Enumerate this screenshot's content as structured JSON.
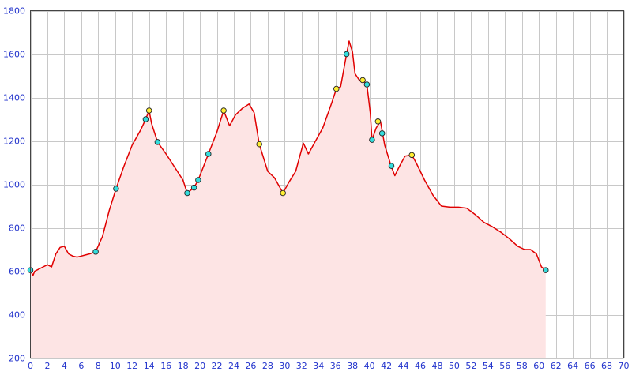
{
  "chart_data": {
    "type": "area",
    "title": "",
    "xlabel": "",
    "ylabel": "",
    "xlim": [
      0,
      70
    ],
    "ylim": [
      200,
      1800
    ],
    "grid": true,
    "x_ticks": [
      0,
      2,
      4,
      6,
      8,
      10,
      12,
      14,
      16,
      18,
      20,
      22,
      24,
      26,
      28,
      30,
      32,
      34,
      36,
      38,
      40,
      42,
      44,
      46,
      48,
      50,
      52,
      54,
      56,
      58,
      60,
      62,
      64,
      66,
      68,
      70
    ],
    "y_ticks": [
      200,
      400,
      600,
      800,
      1000,
      1200,
      1400,
      1600,
      1800
    ],
    "colors": {
      "line": "#e00000",
      "fill": "#fde4e4",
      "grid": "#c8c8c8",
      "tick_label": "#2233cc",
      "marker_cyan": "#33dddd",
      "marker_yellow": "#ffee33"
    },
    "series": [
      {
        "x": [
          0,
          0.3,
          0.5,
          1,
          1.5,
          2,
          2.5,
          3,
          3.5,
          4,
          4.5,
          5,
          5.5,
          6,
          6.5,
          7,
          7.7,
          8.5,
          9.3,
          10.1,
          11,
          12,
          13,
          13.6,
          14,
          14.3,
          15,
          16,
          17,
          18,
          18.5,
          19.3,
          19.8,
          21,
          22,
          22.8,
          23.5,
          24.2,
          25,
          25.8,
          26.4,
          27,
          28,
          28.8,
          29.8,
          30.5,
          31.3,
          32.2,
          32.8,
          33.5,
          34.5,
          35.5,
          36.1,
          36.6,
          37.3,
          37.6,
          38,
          38.3,
          38.8,
          39.2,
          39.7,
          40.1,
          40.3,
          40.8,
          41.3,
          41.8,
          42.6,
          43,
          43.5,
          44.2,
          45,
          45.5,
          46.5,
          47.5,
          48.5,
          49.5,
          50.5,
          51.5,
          52.5,
          53.5,
          54.5,
          55.5,
          56.5,
          57.5,
          58.3,
          59,
          59.7,
          60.3,
          60.8
        ],
        "y": [
          605,
          580,
          600,
          610,
          620,
          630,
          620,
          680,
          710,
          715,
          680,
          670,
          665,
          670,
          675,
          680,
          690,
          760,
          880,
          980,
          1080,
          1180,
          1250,
          1300,
          1340,
          1280,
          1195,
          1140,
          1080,
          1020,
          960,
          985,
          1020,
          1140,
          1240,
          1340,
          1270,
          1320,
          1350,
          1370,
          1330,
          1185,
          1060,
          1030,
          960,
          1010,
          1060,
          1190,
          1140,
          1190,
          1260,
          1370,
          1440,
          1450,
          1600,
          1660,
          1610,
          1510,
          1480,
          1480,
          1460,
          1330,
          1205,
          1260,
          1290,
          1180,
          1080,
          1040,
          1080,
          1130,
          1135,
          1100,
          1020,
          950,
          900,
          895,
          895,
          890,
          860,
          825,
          805,
          780,
          750,
          715,
          700,
          700,
          680,
          620,
          605
        ]
      }
    ],
    "markers": [
      {
        "x": 0,
        "y": 605,
        "color": "cyan"
      },
      {
        "x": 7.7,
        "y": 690,
        "color": "cyan"
      },
      {
        "x": 10.1,
        "y": 980,
        "color": "cyan"
      },
      {
        "x": 13.6,
        "y": 1300,
        "color": "cyan"
      },
      {
        "x": 14.0,
        "y": 1340,
        "color": "yellow"
      },
      {
        "x": 15.0,
        "y": 1195,
        "color": "cyan"
      },
      {
        "x": 18.5,
        "y": 960,
        "color": "cyan"
      },
      {
        "x": 19.3,
        "y": 985,
        "color": "cyan"
      },
      {
        "x": 19.8,
        "y": 1020,
        "color": "cyan"
      },
      {
        "x": 21.0,
        "y": 1140,
        "color": "cyan"
      },
      {
        "x": 22.8,
        "y": 1340,
        "color": "yellow"
      },
      {
        "x": 27.0,
        "y": 1185,
        "color": "yellow"
      },
      {
        "x": 29.8,
        "y": 960,
        "color": "yellow"
      },
      {
        "x": 36.1,
        "y": 1440,
        "color": "yellow"
      },
      {
        "x": 37.3,
        "y": 1600,
        "color": "cyan"
      },
      {
        "x": 39.2,
        "y": 1480,
        "color": "yellow"
      },
      {
        "x": 39.7,
        "y": 1460,
        "color": "cyan"
      },
      {
        "x": 40.3,
        "y": 1205,
        "color": "cyan"
      },
      {
        "x": 41.0,
        "y": 1290,
        "color": "yellow"
      },
      {
        "x": 41.5,
        "y": 1235,
        "color": "cyan"
      },
      {
        "x": 42.6,
        "y": 1085,
        "color": "cyan"
      },
      {
        "x": 45.0,
        "y": 1135,
        "color": "yellow"
      },
      {
        "x": 60.8,
        "y": 605,
        "color": "cyan"
      }
    ]
  }
}
